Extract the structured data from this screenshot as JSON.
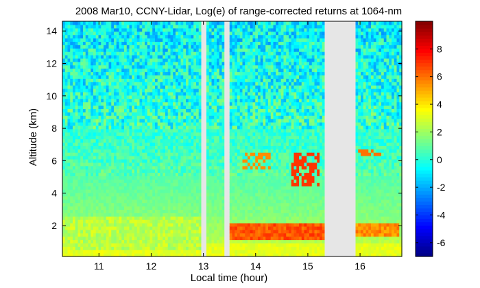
{
  "chart_data": {
    "type": "heatmap",
    "title": "2008 Mar10, CCNY-Lidar, Log(e) of range-corrected returns at 1064-nm",
    "xlabel": "Local time (hour)",
    "ylabel": "Altitude (km)",
    "xlim": [
      10.3,
      16.8
    ],
    "ylim": [
      0.1,
      14.6
    ],
    "x_ticks": [
      "11",
      "12",
      "13",
      "14",
      "15",
      "16"
    ],
    "x_tick_values": [
      11,
      12,
      13,
      14,
      15,
      16
    ],
    "y_ticks": [
      "2",
      "4",
      "6",
      "8",
      "10",
      "12",
      "14"
    ],
    "y_tick_values": [
      2,
      4,
      6,
      8,
      10,
      12,
      14
    ],
    "colorbar": {
      "colormap": "jet",
      "range": [
        -7,
        10
      ],
      "ticks": [
        "-6",
        "-4",
        "-2",
        "0",
        "2",
        "4",
        "6",
        "8"
      ],
      "tick_values": [
        -6,
        -4,
        -2,
        0,
        2,
        4,
        6,
        8
      ]
    },
    "grid": false,
    "no_data_intervals_hours": [
      [
        12.95,
        13.05
      ],
      [
        13.4,
        13.5
      ],
      [
        15.3,
        15.9
      ]
    ],
    "features": [
      {
        "kind": "boundary_layer",
        "t_start": 10.3,
        "t_end": 12.95,
        "alt_min_km": 0.5,
        "alt_max_km": 2.5,
        "value": 2.5
      },
      {
        "kind": "boundary_layer",
        "t_start": 13.5,
        "t_end": 15.3,
        "alt_min_km": 1.2,
        "alt_max_km": 2.2,
        "value": 6.5
      },
      {
        "kind": "boundary_layer",
        "t_start": 15.9,
        "t_end": 16.75,
        "alt_min_km": 1.3,
        "alt_max_km": 2.1,
        "value": 5.5
      },
      {
        "kind": "cloud",
        "t_start": 13.75,
        "t_end": 14.3,
        "alt_min_km": 5.4,
        "alt_max_km": 6.5,
        "value": 5.5
      },
      {
        "kind": "cloud",
        "t_start": 14.7,
        "t_end": 15.2,
        "alt_min_km": 4.5,
        "alt_max_km": 6.5,
        "value": 7
      },
      {
        "kind": "cloud",
        "t_start": 15.9,
        "t_end": 16.4,
        "alt_min_km": 6.3,
        "alt_max_km": 6.8,
        "value": 6
      }
    ]
  },
  "colors": {
    "no_data": "#e6e6e6",
    "background": "#ffffff"
  }
}
